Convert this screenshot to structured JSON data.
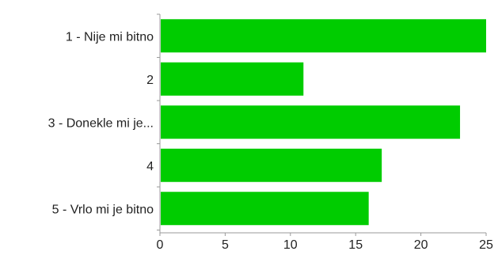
{
  "chart_data": {
    "type": "bar",
    "orientation": "horizontal",
    "categories": [
      "1 - Nije mi bitno",
      "2",
      "3 - Donekle mi je...",
      "4",
      "5 - Vrlo mi je bitno"
    ],
    "values": [
      25,
      11,
      23,
      17,
      16
    ],
    "title": "",
    "xlabel": "",
    "ylabel": "",
    "xlim": [
      0,
      25
    ],
    "xticks": [
      "0",
      "5",
      "10",
      "15",
      "20",
      "25"
    ],
    "grid": false,
    "legend": "none",
    "colors": {
      "bar": "#00cc00",
      "axis": "#9a9a9a",
      "text": "#222222"
    }
  }
}
